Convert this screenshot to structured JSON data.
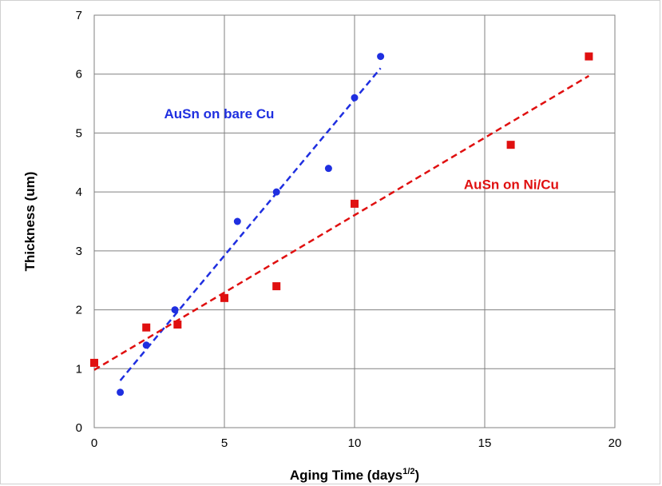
{
  "chart_data": {
    "type": "scatter",
    "xlabel": "Aging Time (days",
    "xlabel_sup": "1/2",
    "xlabel_end": ")",
    "ylabel": "Thickness (um)",
    "xlim": [
      0,
      20
    ],
    "ylim": [
      0,
      7
    ],
    "x_ticks": [
      0,
      5,
      10,
      15,
      20
    ],
    "y_ticks": [
      0,
      1,
      2,
      3,
      4,
      5,
      6,
      7
    ],
    "grid": true,
    "series": [
      {
        "name": "AuSn on bare Cu",
        "marker": "circle",
        "color": "#1f2fe0",
        "x": [
          1,
          2,
          3.1,
          5.5,
          7,
          9,
          10,
          11
        ],
        "y": [
          0.6,
          1.4,
          2.0,
          3.5,
          4.0,
          4.4,
          5.6,
          6.3
        ],
        "trendline": {
          "style": "dashed",
          "x": [
            1,
            11
          ],
          "y": [
            0.8,
            6.1
          ]
        }
      },
      {
        "name": "AuSn on Ni/Cu",
        "marker": "square",
        "color": "#e01010",
        "x": [
          0,
          2,
          3.2,
          5,
          7,
          10,
          16,
          19
        ],
        "y": [
          1.1,
          1.7,
          1.75,
          2.2,
          2.4,
          3.8,
          4.8,
          6.3
        ],
        "trendline": {
          "style": "dashed",
          "x": [
            0,
            19
          ],
          "y": [
            0.98,
            5.97
          ]
        }
      }
    ],
    "annotations": [
      {
        "text": "AuSn on bare Cu",
        "color": "#1f2fe0",
        "series": 0
      },
      {
        "text": "AuSn on Ni/Cu",
        "color": "#e01010",
        "series": 1
      }
    ]
  }
}
